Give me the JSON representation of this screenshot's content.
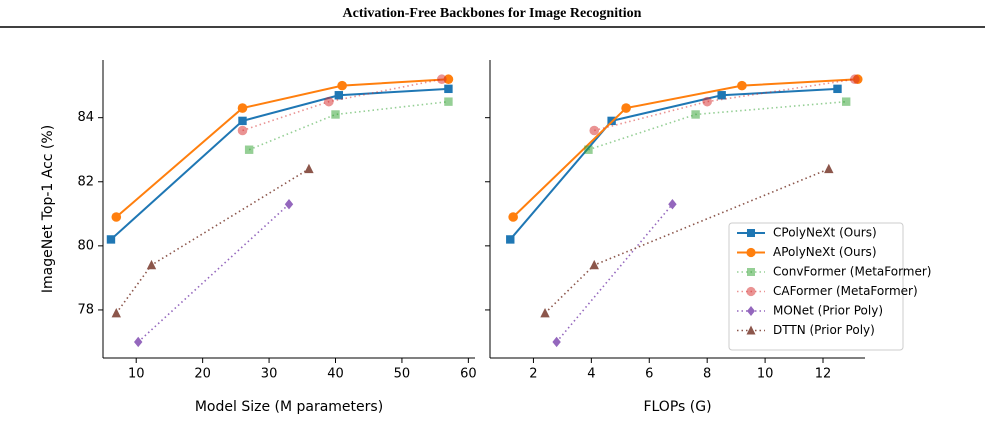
{
  "header": {
    "title": "Activation-Free Backbones for Image Recognition"
  },
  "chart_data": [
    {
      "type": "line",
      "xlabel": "Model Size (M parameters)",
      "ylabel": "ImageNet Top-1 Acc (%)",
      "xlim": [
        5,
        61
      ],
      "xticks": [
        10,
        20,
        30,
        40,
        50,
        60
      ],
      "ylim": [
        76.5,
        85.8
      ],
      "yticks": [
        78,
        80,
        82,
        84
      ],
      "series": [
        {
          "color": "#1f77b4",
          "marker": "square",
          "linestyle": "solid",
          "alpha": 1,
          "x": [
            6.2,
            26,
            40.5,
            57
          ],
          "values": [
            80.2,
            83.9,
            84.7,
            84.9
          ]
        },
        {
          "color": "#ff7f0e",
          "marker": "circle",
          "linestyle": "solid",
          "alpha": 1,
          "x": [
            7,
            26,
            41,
            57
          ],
          "values": [
            80.9,
            84.3,
            85.0,
            85.2
          ]
        },
        {
          "color": "#2ca02c",
          "marker": "square",
          "linestyle": "dotted",
          "alpha": 0.5,
          "x": [
            27,
            40,
            57
          ],
          "values": [
            83.0,
            84.1,
            84.5
          ]
        },
        {
          "color": "#d62728",
          "marker": "circle",
          "linestyle": "dotted",
          "alpha": 0.5,
          "x": [
            26,
            39,
            56
          ],
          "values": [
            83.6,
            84.5,
            85.2
          ]
        },
        {
          "color": "#9467bd",
          "marker": "diamond",
          "linestyle": "dotted",
          "alpha": 1,
          "x": [
            10.3,
            33
          ],
          "values": [
            77.0,
            81.3
          ]
        },
        {
          "color": "#8c564b",
          "marker": "triangle",
          "linestyle": "dotted",
          "alpha": 1,
          "x": [
            7,
            12.3,
            36
          ],
          "values": [
            77.9,
            79.4,
            82.4
          ]
        }
      ]
    },
    {
      "type": "line",
      "xlabel": "FLOPs (G)",
      "legend": "lower right",
      "xlim": [
        0.5,
        13.45
      ],
      "xticks": [
        2,
        4,
        6,
        8,
        10,
        12
      ],
      "ylim": [
        76.5,
        85.8
      ],
      "yticks": [
        78,
        80,
        82,
        84
      ],
      "series": [
        {
          "name": "CPolyNeXt (Ours)",
          "color": "#1f77b4",
          "marker": "square",
          "linestyle": "solid",
          "alpha": 1,
          "x": [
            1.2,
            4.7,
            8.5,
            12.5
          ],
          "values": [
            80.2,
            83.9,
            84.7,
            84.9
          ]
        },
        {
          "name": "APolyNeXt (Ours)",
          "color": "#ff7f0e",
          "marker": "circle",
          "linestyle": "solid",
          "alpha": 1,
          "x": [
            1.3,
            5.2,
            9.2,
            13.2
          ],
          "values": [
            80.9,
            84.3,
            85.0,
            85.2
          ]
        },
        {
          "name": "ConvFormer (MetaFormer)",
          "color": "#2ca02c",
          "marker": "square",
          "linestyle": "dotted",
          "alpha": 0.5,
          "x": [
            3.9,
            7.6,
            12.8
          ],
          "values": [
            83.0,
            84.1,
            84.5
          ]
        },
        {
          "name": "CAFormer (MetaFormer)",
          "color": "#d62728",
          "marker": "circle",
          "linestyle": "dotted",
          "alpha": 0.5,
          "x": [
            4.1,
            8.0,
            13.1
          ],
          "values": [
            83.6,
            84.5,
            85.2
          ]
        },
        {
          "name": "MONet (Prior Poly)",
          "color": "#9467bd",
          "marker": "diamond",
          "linestyle": "dotted",
          "alpha": 1,
          "x": [
            2.8,
            6.8
          ],
          "values": [
            77.0,
            81.3
          ]
        },
        {
          "name": "DTTN (Prior Poly)",
          "color": "#8c564b",
          "marker": "triangle",
          "linestyle": "dotted",
          "alpha": 1,
          "x": [
            2.4,
            4.1,
            12.2
          ],
          "values": [
            77.9,
            79.4,
            82.4
          ]
        }
      ]
    }
  ]
}
